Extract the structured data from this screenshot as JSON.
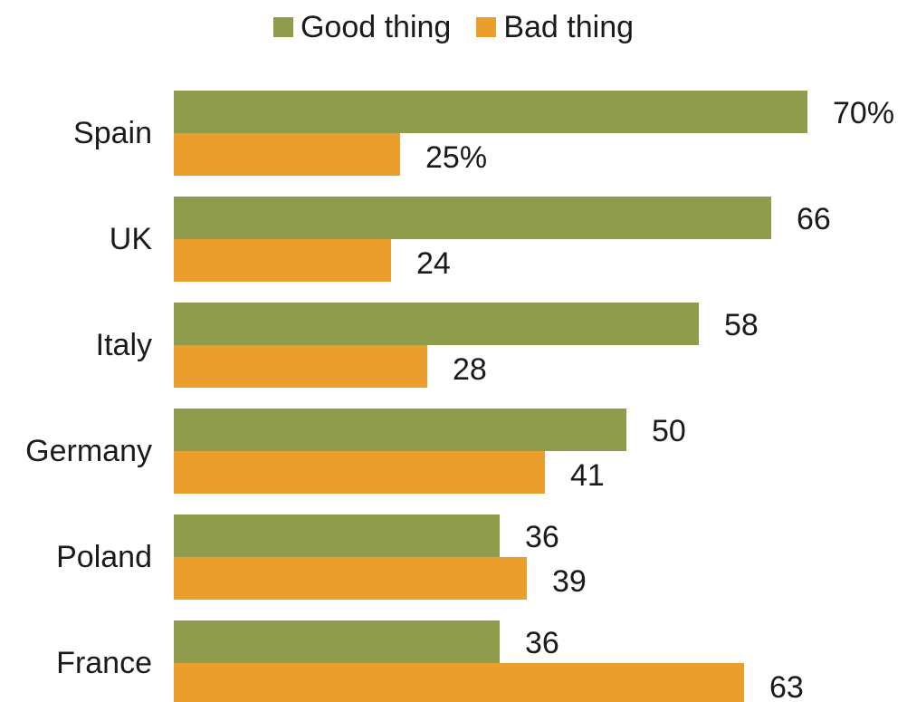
{
  "legend": {
    "good_label": "Good thing",
    "bad_label": "Bad thing"
  },
  "colors": {
    "good": "#8f9c4b",
    "bad": "#e99e2e"
  },
  "chart_data": {
    "type": "bar",
    "orientation": "horizontal",
    "categories": [
      "Spain",
      "UK",
      "Italy",
      "Germany",
      "Poland",
      "France"
    ],
    "series": [
      {
        "name": "Good thing",
        "values": [
          70,
          66,
          58,
          50,
          36,
          36
        ]
      },
      {
        "name": "Bad thing",
        "values": [
          25,
          24,
          28,
          41,
          39,
          63
        ]
      }
    ],
    "value_labels": {
      "Good thing": [
        "70%",
        "66",
        "58",
        "50",
        "36",
        "36"
      ],
      "Bad thing": [
        "25%",
        "24",
        "28",
        "41",
        "39",
        "63"
      ]
    },
    "xlim": [
      0,
      70
    ],
    "legend_position": "top",
    "grid": false
  }
}
